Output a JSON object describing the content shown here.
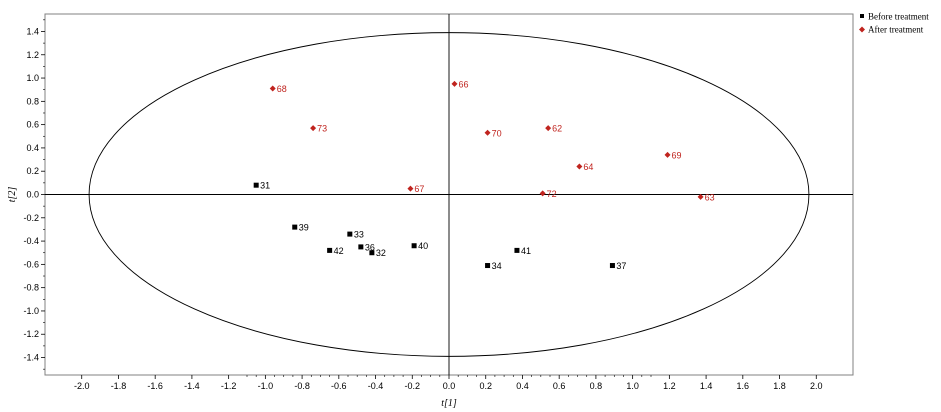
{
  "chart_data": {
    "type": "scatter",
    "title": "",
    "xlabel": "t[1]",
    "ylabel": "t[2]",
    "xlim": [
      -2.2,
      2.2
    ],
    "ylim": [
      -1.55,
      1.55
    ],
    "x_ticks": [
      -2.0,
      -1.8,
      -1.6,
      -1.4,
      -1.2,
      -1.0,
      -0.8,
      -0.6,
      -0.4,
      -0.2,
      0.0,
      0.2,
      0.4,
      0.6,
      0.8,
      1.0,
      1.2,
      1.4,
      1.6,
      1.8,
      2.0
    ],
    "x_tick_labels": [
      "-2.0",
      "-1.8",
      "-1.6",
      "-1.4",
      "-1.2",
      "-1.0",
      "-0.8",
      "-0.6",
      "-0.4",
      "-0.2",
      "0.0",
      "0.2",
      "0.4",
      "0.6",
      "0.8",
      "1.0",
      "1.2",
      "1.4",
      "1.6",
      "1.8",
      "2.0"
    ],
    "y_ticks": [
      1.4,
      1.2,
      1.0,
      0.8,
      0.6,
      0.4,
      0.2,
      0.0,
      -0.2,
      -0.4,
      -0.6,
      -0.8,
      -1.0,
      -1.2,
      -1.4
    ],
    "y_tick_labels": [
      "1.4",
      "1.2",
      "1.0",
      "0.8",
      "0.6",
      "0.4",
      "0.2",
      "0.0",
      "-0.2",
      "-0.4",
      "-0.6",
      "-0.8",
      "-1.0",
      "-1.2",
      "-1.4"
    ],
    "ellipse": {
      "rx": 1.96,
      "ry": 1.39
    },
    "grid": false,
    "legend_position": "top-right",
    "series": [
      {
        "name": "Before treatment",
        "marker": "square",
        "color": "#000000",
        "points": [
          {
            "label": "31",
            "x": -1.05,
            "y": 0.08
          },
          {
            "label": "39",
            "x": -0.84,
            "y": -0.28
          },
          {
            "label": "33",
            "x": -0.54,
            "y": -0.34
          },
          {
            "label": "36",
            "x": -0.48,
            "y": -0.45
          },
          {
            "label": "42",
            "x": -0.65,
            "y": -0.48
          },
          {
            "label": "32",
            "x": -0.42,
            "y": -0.5
          },
          {
            "label": "40",
            "x": -0.19,
            "y": -0.44
          },
          {
            "label": "41",
            "x": 0.37,
            "y": -0.48
          },
          {
            "label": "34",
            "x": 0.21,
            "y": -0.61
          },
          {
            "label": "37",
            "x": 0.89,
            "y": -0.61
          }
        ]
      },
      {
        "name": "After treatment",
        "marker": "diamond",
        "color": "#c0241f",
        "points": [
          {
            "label": "68",
            "x": -0.96,
            "y": 0.91
          },
          {
            "label": "66",
            "x": 0.03,
            "y": 0.95
          },
          {
            "label": "73",
            "x": -0.74,
            "y": 0.57
          },
          {
            "label": "70",
            "x": 0.21,
            "y": 0.53
          },
          {
            "label": "62",
            "x": 0.54,
            "y": 0.57
          },
          {
            "label": "69",
            "x": 1.19,
            "y": 0.34
          },
          {
            "label": "64",
            "x": 0.71,
            "y": 0.24
          },
          {
            "label": "67",
            "x": -0.21,
            "y": 0.05
          },
          {
            "label": "72",
            "x": 0.51,
            "y": 0.01
          },
          {
            "label": "63",
            "x": 1.37,
            "y": -0.02
          }
        ]
      }
    ]
  }
}
